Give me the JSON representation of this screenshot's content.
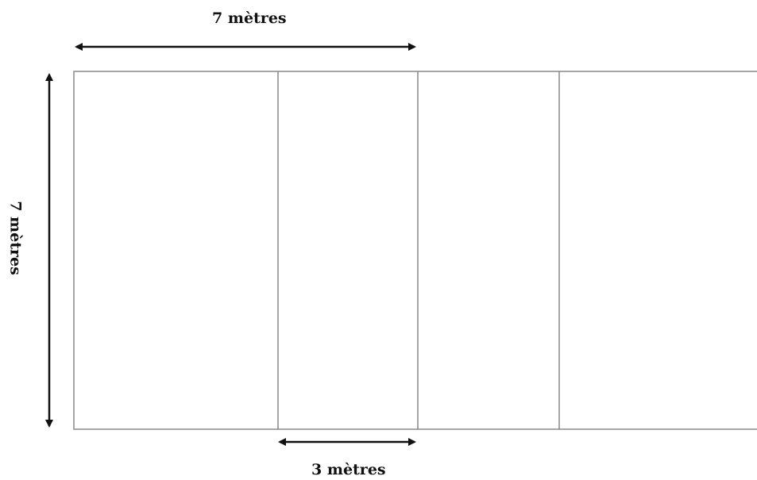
{
  "labels": {
    "top_width": "7 mètres",
    "left_height": "7 mètres",
    "bottom_width": "3 mètres"
  },
  "colors": {
    "line": "#888888",
    "arrow": "#111111"
  }
}
